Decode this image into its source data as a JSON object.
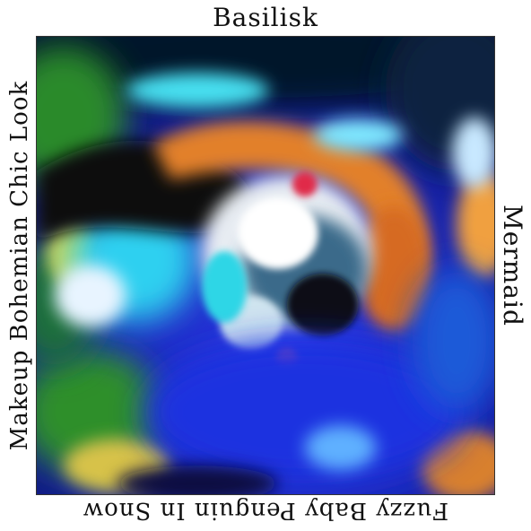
{
  "labels": {
    "top": "Basilisk",
    "right": "Mermaid",
    "bottom": "Fuzzy Baby Penguin In Snow",
    "left": "Makeup Bohemian Chic Look"
  },
  "image": {
    "subject": "abstract-artwork",
    "palette": {
      "deep_blue": "#1f2fd0",
      "navy": "#0b1250",
      "cyan": "#33d6f0",
      "green": "#2e8a2a",
      "orange": "#e07a28",
      "white": "#f2f2ee",
      "black": "#0a0a12"
    }
  }
}
